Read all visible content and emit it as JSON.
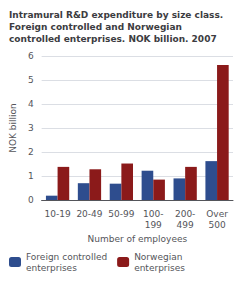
{
  "chart_data": {
    "type": "bar",
    "title": "Intramural R&D expenditure by size class.\nForeign controlled and Norwegian\ncontrolled enterprises. NOK billion. 2007",
    "xlabel": "Number of employees",
    "ylabel": "NOK billion",
    "categories": [
      "10-19",
      "20-49",
      "50-99",
      "100-\n199",
      "200-\n499",
      "Over\n500"
    ],
    "series": [
      {
        "name": "Foreign controlled\nenterprises",
        "color": "#2e4d8e",
        "values": [
          0.18,
          0.7,
          0.68,
          1.22,
          0.9,
          1.62
        ]
      },
      {
        "name": "Norwegian\nenterprises",
        "color": "#8b1a1a",
        "values": [
          1.38,
          1.28,
          1.52,
          0.85,
          1.38,
          5.62
        ]
      }
    ],
    "ylim": [
      0,
      6
    ],
    "yticks": [
      0,
      1,
      2,
      3,
      4,
      5,
      6
    ],
    "grid": true,
    "legend": "lower left"
  }
}
